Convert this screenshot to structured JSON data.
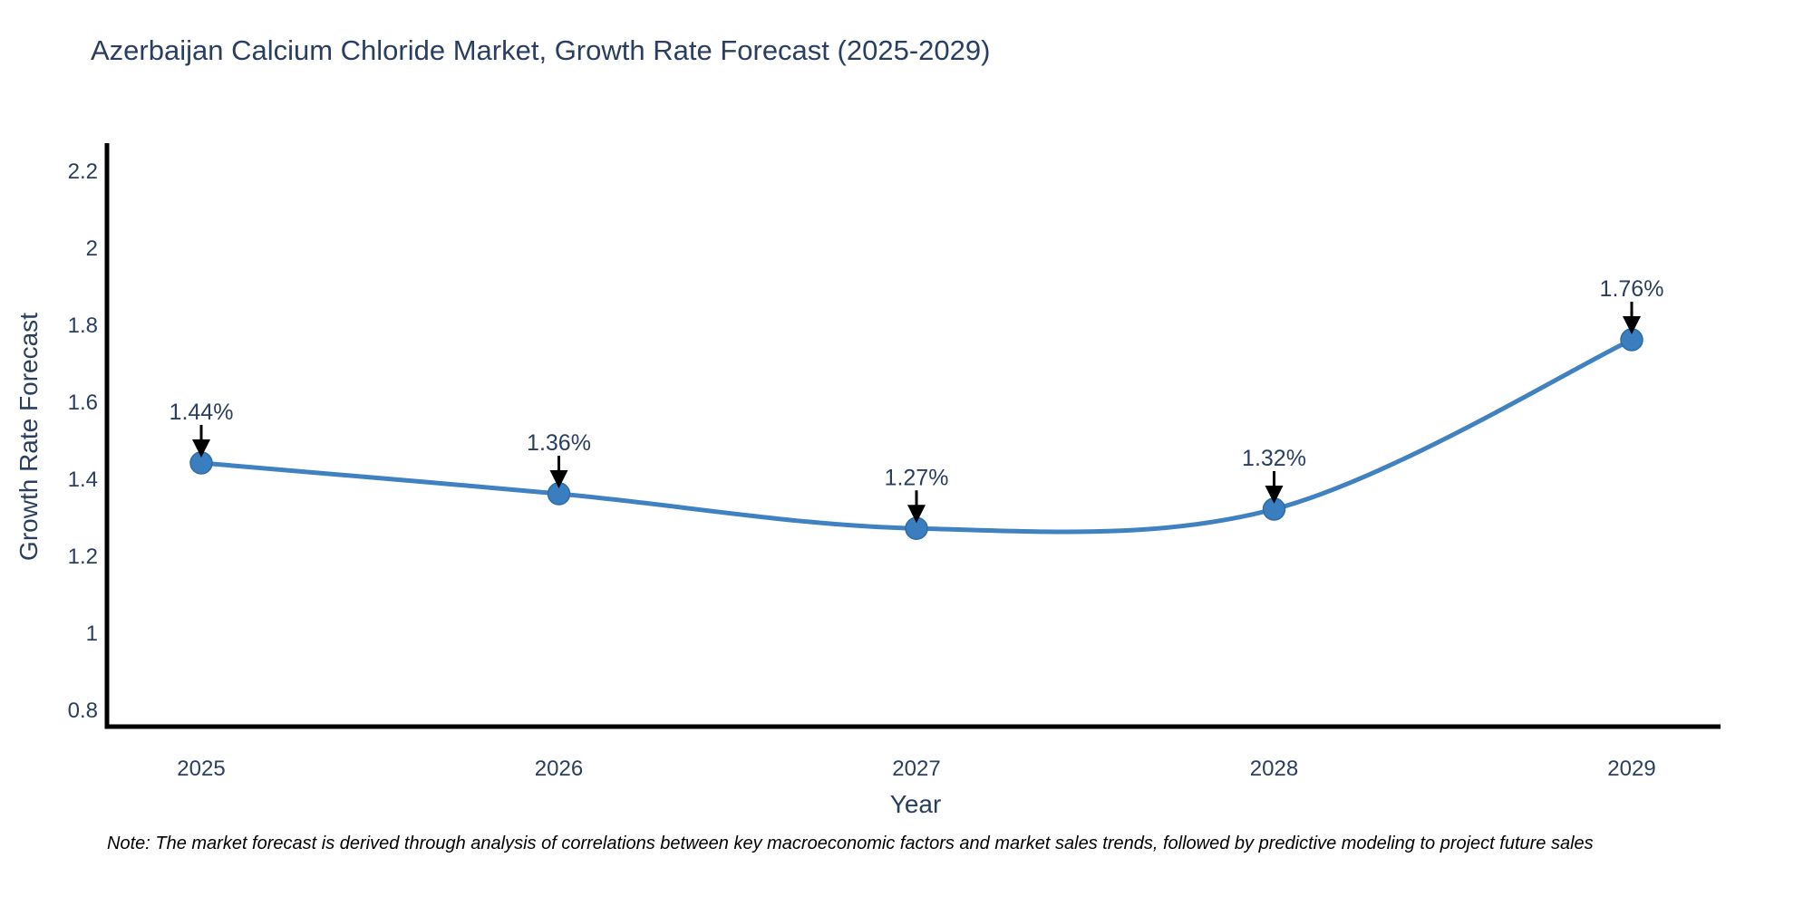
{
  "title": "Azerbaijan Calcium Chloride Market, Growth Rate Forecast (2025-2029)",
  "note": "Note: The market forecast is derived through analysis of correlations between key macroeconomic factors and market sales trends, followed by predictive modeling to project future sales",
  "colors": {
    "line": "#3f81c1",
    "marker_fill": "#3a7ebf",
    "marker_edge": "#2e6ca8",
    "axis": "#000000",
    "tick_text": "#2a3f5f",
    "annotation_text": "#2a3f5f",
    "arrow": "#000000",
    "background": "#ffffff"
  },
  "chart_data": {
    "type": "line",
    "title": "Azerbaijan Calcium Chloride Market, Growth Rate Forecast (2025-2029)",
    "xlabel": "Year",
    "ylabel": "Growth Rate Forecast",
    "x": [
      2025,
      2026,
      2027,
      2028,
      2029
    ],
    "series": [
      {
        "name": "Growth Rate Forecast",
        "values": [
          1.44,
          1.36,
          1.27,
          1.32,
          1.76
        ],
        "point_labels": [
          "1.44%",
          "1.36%",
          "1.27%",
          "1.32%",
          "1.76%"
        ]
      }
    ],
    "xtick_labels": [
      "2025",
      "2026",
      "2027",
      "2028",
      "2029"
    ],
    "yticks": [
      0.8,
      1.0,
      1.2,
      1.4,
      1.6,
      1.8,
      2.0,
      2.2
    ],
    "ytick_labels": [
      "0.8",
      "1",
      "1.2",
      "1.4",
      "1.6",
      "1.8",
      "2",
      "2.2"
    ],
    "ylim": [
      0.755,
      2.27
    ],
    "xlim": [
      2024.72,
      2029.26
    ],
    "line_shape": "spline",
    "grid": false,
    "legend": null,
    "annotations_arrow_style": "down-arrow-to-point"
  }
}
